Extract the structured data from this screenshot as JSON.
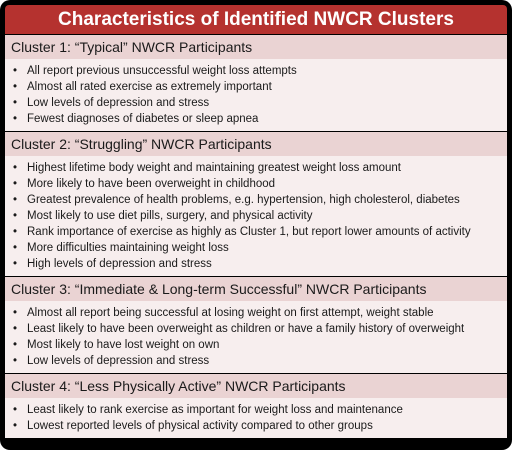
{
  "title": "Characteristics of Identified NWCR Clusters",
  "clusters": [
    {
      "header": "Cluster 1: “Typical” NWCR Participants",
      "items": [
        "All report previous unsuccessful weight loss attempts",
        "Almost all rated exercise as extremely important",
        "Low levels of depression and stress",
        "Fewest diagnoses of diabetes or sleep apnea"
      ]
    },
    {
      "header": "Cluster 2: “Struggling” NWCR Participants",
      "items": [
        "Highest lifetime body weight and maintaining greatest weight loss amount",
        "More likely to have been overweight in childhood",
        "Greatest prevalence of health problems, e.g. hypertension, high cholesterol, diabetes",
        "Most likely to use diet pills, surgery, and physical activity",
        "Rank importance of exercise as highly as Cluster 1, but report lower amounts of activity",
        "More difficulties maintaining weight loss",
        "High levels of depression and stress"
      ]
    },
    {
      "header": "Cluster 3: “Immediate & Long-term Successful” NWCR Participants",
      "items": [
        "Almost all report being successful at losing weight on first attempt, weight stable",
        "Least likely to have been overweight as children or have a family history of overweight",
        "Most likely to have lost weight on own",
        "Low levels of depression and stress"
      ]
    },
    {
      "header": "Cluster 4: “Less Physically Active” NWCR Participants",
      "items": [
        "Least likely to rank exercise as important for weight loss and maintenance",
        "Lowest reported levels of physical activity compared to other groups"
      ]
    }
  ]
}
